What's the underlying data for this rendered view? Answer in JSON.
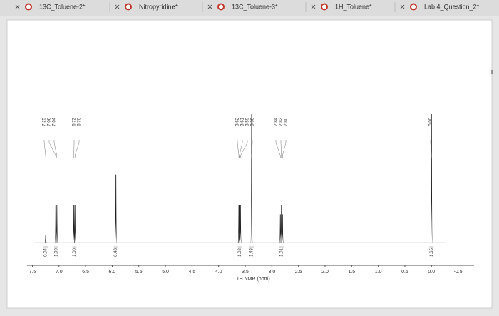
{
  "tabs": [
    "13C_Toluene-2*",
    "Nitropyridine*",
    "13C_Toluene-3*",
    "1H_Toluene*",
    "Lab 4_Question_2*"
  ],
  "chart_data": {
    "type": "nmr",
    "xlabel": "1H NMR (ppm)",
    "xlim": [
      7.6,
      -0.8
    ],
    "xticks": [
      7.5,
      {
        "value": 7,
        "label": "7.0"
      },
      6.5,
      {
        "value": 6,
        "label": "6.0"
      },
      5.5,
      {
        "value": 5,
        "label": "5.0"
      },
      4.5,
      {
        "value": 4,
        "label": "4.0"
      },
      3.5,
      {
        "value": 3,
        "label": "3.0"
      },
      2.5,
      {
        "value": 2,
        "label": "2.0"
      },
      1.5,
      {
        "value": 1,
        "label": "1.0"
      },
      0.5,
      {
        "value": 0,
        "label": "0.0"
      },
      -0.5
    ],
    "ylim": [
      0,
      100
    ],
    "color": "#222222",
    "peaks": {
      "x": [
        7.25,
        7.06,
        7.04,
        6.72,
        6.7,
        5.93,
        3.62,
        3.61,
        3.59,
        3.38,
        2.84,
        2.82,
        2.8,
        0.0
      ],
      "values": [
        6,
        29,
        29,
        29,
        29,
        53,
        29,
        29,
        29,
        100,
        22,
        29,
        22,
        100
      ]
    },
    "shift_labels": [
      "7.25",
      "7.06",
      "7.04",
      "6.72",
      "6.70",
      "3.62",
      "3.61",
      "3.59",
      "3.38",
      "2.84",
      "2.82",
      "2.80",
      "0.00"
    ],
    "integrals": {
      "x": [
        7.25,
        7.05,
        6.71,
        5.93,
        3.6,
        3.38,
        2.82,
        0.0
      ],
      "values": [
        0.04,
        1,
        1,
        0.48,
        1.02,
        1.48,
        1.01,
        1.65
      ],
      "value_labels": [
        "0.04",
        "1.00",
        "1.00",
        "0.48",
        "1.02",
        "1.48",
        "1.01",
        "1.65"
      ]
    }
  }
}
